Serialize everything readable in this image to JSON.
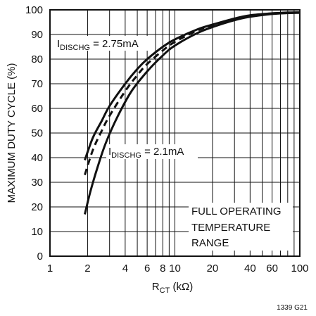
{
  "chart_data": {
    "type": "line",
    "x_scale": "log",
    "xlim": [
      1,
      100
    ],
    "ylim": [
      0,
      100
    ],
    "grid": true,
    "xlabel": {
      "main": "R",
      "sub": "CT",
      "unit": " (kΩ)"
    },
    "ylabel": "MAXIMUM DUTY CYCLE (%)",
    "x_ticks": [
      {
        "value": 1,
        "label": "1"
      },
      {
        "value": 2,
        "label": "2"
      },
      {
        "value": 4,
        "label": "4"
      },
      {
        "value": 6,
        "label": "6"
      },
      {
        "value": 8,
        "label": "8"
      },
      {
        "value": 10,
        "label": "10"
      },
      {
        "value": 20,
        "label": "20"
      },
      {
        "value": 40,
        "label": "40"
      },
      {
        "value": 60,
        "label": "60"
      },
      {
        "value": 100,
        "label": "100"
      }
    ],
    "y_ticks": [
      0,
      10,
      20,
      30,
      40,
      50,
      60,
      70,
      80,
      90,
      100
    ],
    "series": [
      {
        "style": "solid",
        "x": [
          1.9,
          2.2,
          2.6,
          3,
          4,
          5,
          6,
          8,
          10,
          15,
          20,
          30,
          40,
          60,
          80,
          100
        ],
        "y": [
          39,
          48,
          55,
          61,
          70,
          76,
          80,
          85,
          88,
          92,
          94,
          96.5,
          97.8,
          98.6,
          98.9,
          99
        ]
      },
      {
        "style": "dashed",
        "x": [
          1.9,
          2.2,
          2.6,
          3,
          4,
          5,
          6,
          8,
          10,
          15,
          20,
          30,
          40,
          60,
          80,
          100
        ],
        "y": [
          33,
          43,
          51,
          57,
          67,
          73.5,
          78,
          83.5,
          87,
          91.5,
          93.8,
          96.2,
          97.5,
          98.5,
          98.8,
          98.9
        ]
      },
      {
        "style": "solid",
        "x": [
          1.9,
          2.1,
          2.4,
          2.8,
          3.5,
          4.5,
          6,
          8,
          10,
          15,
          20,
          30,
          40,
          60,
          80,
          100
        ],
        "y": [
          17,
          26,
          36,
          46,
          57,
          67,
          75,
          81.5,
          85.5,
          90.5,
          93,
          95.8,
          97.2,
          98.3,
          98.7,
          98.8
        ]
      }
    ],
    "annotations": {
      "upper_curve": {
        "main": "I",
        "sub": "DISCHG",
        "text": " = 2.75mA"
      },
      "lower_curve": {
        "main": "I",
        "sub": "DISCHG",
        "text": " = 2.1mA"
      },
      "range_note": [
        "FULL OPERATING",
        "TEMPERATURE",
        "RANGE"
      ]
    },
    "figure_id": "1339 G21"
  }
}
